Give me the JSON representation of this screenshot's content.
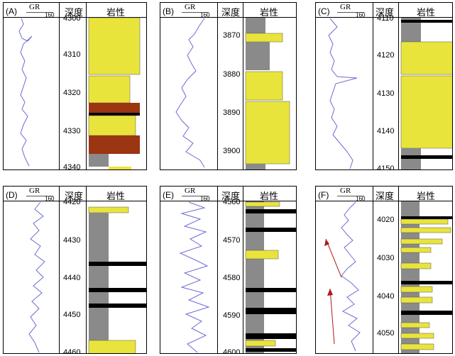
{
  "headers": {
    "gr": "GR",
    "gr_max": "160",
    "depth": "深度",
    "lithology": "岩性"
  },
  "legend_colors": {
    "sand": "#e9e43c",
    "mud": "#8a8a8a",
    "coal": "#000000",
    "red_mud": "#9b3512",
    "gr_curve": "#6b6bd6"
  },
  "panels": [
    {
      "label": "(A)",
      "depths": [
        "4300",
        "4310",
        "4320",
        "4330",
        "4340"
      ]
    },
    {
      "label": "(B)",
      "depths": [
        "3870",
        "3880",
        "3890",
        "3900"
      ]
    },
    {
      "label": "(C)",
      "depths": [
        "4110",
        "4120",
        "4130",
        "4140",
        "4150"
      ]
    },
    {
      "label": "(D)",
      "depths": [
        "4420",
        "4430",
        "4440",
        "4450",
        "4460"
      ]
    },
    {
      "label": "(E)",
      "depths": [
        "4560",
        "4570",
        "4580",
        "4590",
        "4600"
      ]
    },
    {
      "label": "(F)",
      "depths": [
        "4020",
        "4030",
        "4040",
        "4050"
      ]
    }
  ]
}
